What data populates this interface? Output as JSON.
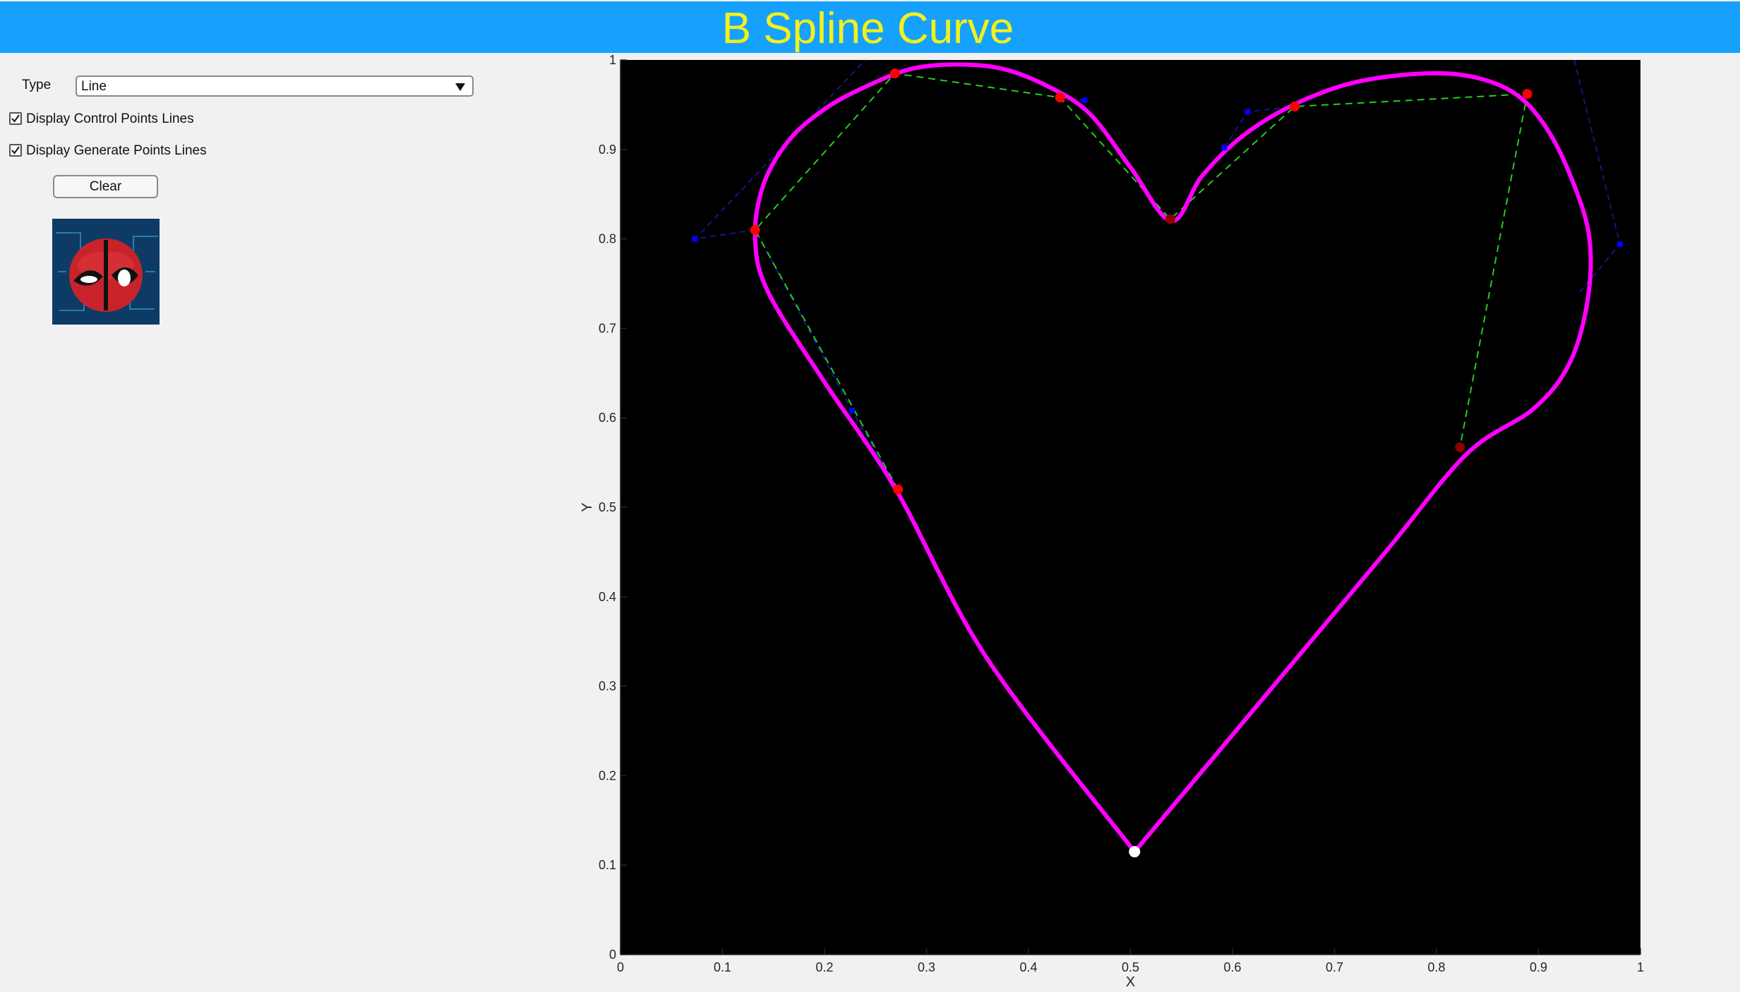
{
  "app": {
    "title": "B Spline Curve"
  },
  "controls": {
    "type_label": "Type",
    "type_value": "Line",
    "display_control_points_lines": {
      "label": "Display Control Points Lines",
      "checked": true
    },
    "display_generate_points_lines": {
      "label": "Display Generate Points Lines",
      "checked": true
    },
    "clear_label": "Clear",
    "avatar_icon": "deadpool-mascot-icon"
  },
  "colors": {
    "title_bar": "#16a1ff",
    "title_text": "#f2f21a",
    "plot_background": "#000000",
    "curve": "#ff00ff",
    "generated_lines": "#22cc22",
    "control_lines": "#1a1aa8",
    "control_points": "#0000ff",
    "generated_points": "#ff0000",
    "selected_point": "#ffffff"
  },
  "chart_data": {
    "type": "line",
    "title": "",
    "xlabel": "X",
    "ylabel": "Y",
    "xlim": [
      0,
      1
    ],
    "ylim": [
      0,
      1
    ],
    "xticks": [
      "0",
      "0.1",
      "0.2",
      "0.3",
      "0.4",
      "0.5",
      "0.6",
      "0.7",
      "0.8",
      "0.9",
      "1"
    ],
    "yticks": [
      "0",
      "0.1",
      "0.2",
      "0.3",
      "0.4",
      "0.5",
      "0.6",
      "0.7",
      "0.8",
      "0.9",
      "1"
    ],
    "grid": false,
    "curve": {
      "x": [
        0.504,
        0.36,
        0.27,
        0.2,
        0.145,
        0.132,
        0.14,
        0.165,
        0.2,
        0.24,
        0.285,
        0.33,
        0.375,
        0.42,
        0.46,
        0.5,
        0.54,
        0.57,
        0.61,
        0.66,
        0.72,
        0.79,
        0.84,
        0.88,
        0.91,
        0.935,
        0.95,
        0.948,
        0.93,
        0.895,
        0.83,
        0.75,
        0.64,
        0.504
      ],
      "y": [
        0.115,
        0.33,
        0.52,
        0.64,
        0.74,
        0.8,
        0.86,
        0.91,
        0.945,
        0.97,
        0.99,
        0.995,
        0.99,
        0.97,
        0.94,
        0.88,
        0.82,
        0.87,
        0.915,
        0.95,
        0.975,
        0.985,
        0.98,
        0.96,
        0.92,
        0.86,
        0.8,
        0.73,
        0.66,
        0.61,
        0.56,
        0.45,
        0.3,
        0.115
      ]
    },
    "generated_points": {
      "x": [
        0.272,
        0.132,
        0.269,
        0.431,
        0.539,
        0.661,
        0.889,
        0.823
      ],
      "y": [
        0.52,
        0.81,
        0.985,
        0.958,
        0.822,
        0.948,
        0.962,
        0.567
      ]
    },
    "generated_point_colors": [
      "#ff0000",
      "#ff0000",
      "#ff0000",
      "#ff0000",
      "#8b0000",
      "#ff0000",
      "#ff0000",
      "#8b0000"
    ],
    "control_points": {
      "x": [
        0.227,
        0.073,
        0.455,
        0.592,
        0.615,
        0.98
      ],
      "y": [
        0.608,
        0.8,
        0.955,
        0.902,
        0.942,
        0.794
      ]
    },
    "selected_point": {
      "x": 0.504,
      "y": 0.115
    }
  }
}
